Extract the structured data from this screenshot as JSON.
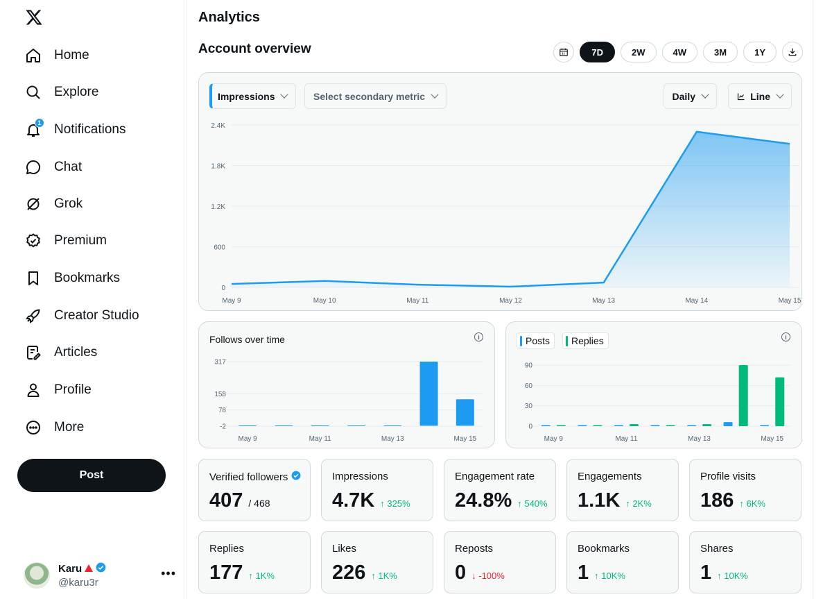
{
  "sidebar": {
    "logo_icon": "x-logo-icon",
    "items": [
      {
        "label": "Home",
        "icon": "home-icon"
      },
      {
        "label": "Explore",
        "icon": "search-icon"
      },
      {
        "label": "Notifications",
        "icon": "bell-icon",
        "badge": "1"
      },
      {
        "label": "Chat",
        "icon": "chat-icon"
      },
      {
        "label": "Grok",
        "icon": "grok-icon"
      },
      {
        "label": "Premium",
        "icon": "premium-icon"
      },
      {
        "label": "Bookmarks",
        "icon": "bookmark-icon"
      },
      {
        "label": "Creator Studio",
        "icon": "rocket-icon"
      },
      {
        "label": "Articles",
        "icon": "article-icon"
      },
      {
        "label": "Profile",
        "icon": "person-icon"
      },
      {
        "label": "More",
        "icon": "more-circle-icon"
      }
    ],
    "post_label": "Post",
    "account": {
      "name": "Karu",
      "handle": "@karu3r",
      "more": "•••"
    }
  },
  "header": {
    "title": "Analytics",
    "subtitle": "Account overview",
    "ranges": [
      "7D",
      "2W",
      "4W",
      "3M",
      "1Y"
    ],
    "active_range": "7D"
  },
  "controls": {
    "primary_metric": "Impressions",
    "secondary_metric_placeholder": "Select secondary metric",
    "granularity": "Daily",
    "chart_kind": "Line"
  },
  "colors": {
    "accent": "#1d9bf0",
    "green": "#00ba7c",
    "red": "#f4212e",
    "dark": "#0f1419"
  },
  "chart_data": [
    {
      "type": "area",
      "x": [
        "May 9",
        "May 10",
        "May 11",
        "May 12",
        "May 13",
        "May 14",
        "May 15"
      ],
      "series": [
        {
          "values": [
            50,
            95,
            40,
            10,
            70,
            2300,
            2120
          ]
        }
      ],
      "yticks": [
        "2.4K",
        "1.8K",
        "1.2K",
        "600",
        "0"
      ],
      "ylim": [
        0,
        2400
      ]
    },
    {
      "type": "bar",
      "title": "Follows over time",
      "categories": [
        "May 9",
        "May 10",
        "May 11",
        "May 12",
        "May 13",
        "May 14",
        "May 15"
      ],
      "xticks": [
        "May 9",
        "May 11",
        "May 13",
        "May 15"
      ],
      "series": [
        {
          "values": [
            -2,
            -2,
            -2,
            -2,
            -2,
            317,
            131
          ]
        }
      ],
      "yticks": [
        "317",
        "158",
        "78",
        "-2"
      ],
      "ylim": [
        -2,
        317
      ]
    },
    {
      "type": "bar",
      "categories": [
        "May 9",
        "May 10",
        "May 11",
        "May 12",
        "May 13",
        "May 14",
        "May 15"
      ],
      "xticks": [
        "May 9",
        "May 11",
        "May 13",
        "May 15"
      ],
      "series": [
        {
          "name": "Posts",
          "values": [
            0,
            0,
            0,
            0,
            0,
            6,
            1
          ]
        },
        {
          "name": "Replies",
          "values": [
            0,
            1,
            3,
            0,
            3,
            90,
            72
          ]
        }
      ],
      "yticks": [
        "90",
        "60",
        "30",
        "0"
      ],
      "ylim": [
        0,
        90
      ]
    }
  ],
  "stats": [
    {
      "label": "Verified followers",
      "value": "407",
      "sub": "/ 468",
      "verified": true
    },
    {
      "label": "Impressions",
      "value": "4.7K",
      "change": "↑ 325%",
      "dir": "up"
    },
    {
      "label": "Engagement rate",
      "value": "24.8%",
      "change": "↑ 540%",
      "dir": "up"
    },
    {
      "label": "Engagements",
      "value": "1.1K",
      "change": "↑ 2K%",
      "dir": "up"
    },
    {
      "label": "Profile visits",
      "value": "186",
      "change": "↑ 6K%",
      "dir": "up"
    },
    {
      "label": "Replies",
      "value": "177",
      "change": "↑ 1K%",
      "dir": "up"
    },
    {
      "label": "Likes",
      "value": "226",
      "change": "↑ 1K%",
      "dir": "up"
    },
    {
      "label": "Reposts",
      "value": "0",
      "change": "↓ -100%",
      "dir": "down"
    },
    {
      "label": "Bookmarks",
      "value": "1",
      "change": "↑ 10K%",
      "dir": "up"
    },
    {
      "label": "Shares",
      "value": "1",
      "change": "↑ 10K%",
      "dir": "up"
    }
  ]
}
